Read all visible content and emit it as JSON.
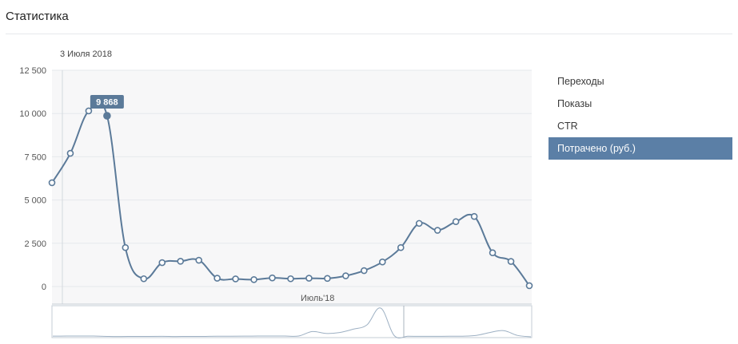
{
  "page": {
    "title": "Статистика"
  },
  "metrics": [
    {
      "label": "Переходы",
      "active": false
    },
    {
      "label": "Показы",
      "active": false
    },
    {
      "label": "CTR",
      "active": false
    },
    {
      "label": "Потрачено (руб.)",
      "active": true
    }
  ],
  "chart_data": {
    "type": "line",
    "date_label": "3 Июля 2018",
    "month_label": "Июль'18",
    "tooltip_value": "9 868",
    "highlight_index": 3,
    "y_ticks": [
      {
        "value": 0,
        "label": "0"
      },
      {
        "value": 2500,
        "label": "2 500"
      },
      {
        "value": 5000,
        "label": "5 000"
      },
      {
        "value": 7500,
        "label": "7 500"
      },
      {
        "value": 10000,
        "label": "10 000"
      },
      {
        "value": 12500,
        "label": "12 500"
      }
    ],
    "ylim": [
      0,
      12500
    ],
    "grid": true,
    "line_color": "#5b7a99",
    "series": [
      {
        "values": [
          6000,
          7700,
          10150,
          9868,
          2250,
          450,
          1380,
          1460,
          1520,
          480,
          440,
          400,
          500,
          450,
          480,
          470,
          620,
          920,
          1420,
          2250,
          3650,
          3250,
          3750,
          4050,
          1950,
          1450,
          50
        ]
      }
    ],
    "overview_values": [
      150,
      160,
      170,
      160,
      80,
      60,
      90,
      90,
      100,
      70,
      80,
      90,
      120,
      140,
      150,
      160,
      170,
      170,
      170,
      1100,
      700,
      900,
      1600,
      2500,
      6000,
      250,
      120,
      100,
      100,
      120,
      130,
      300,
      900,
      1300,
      300,
      0
    ]
  }
}
